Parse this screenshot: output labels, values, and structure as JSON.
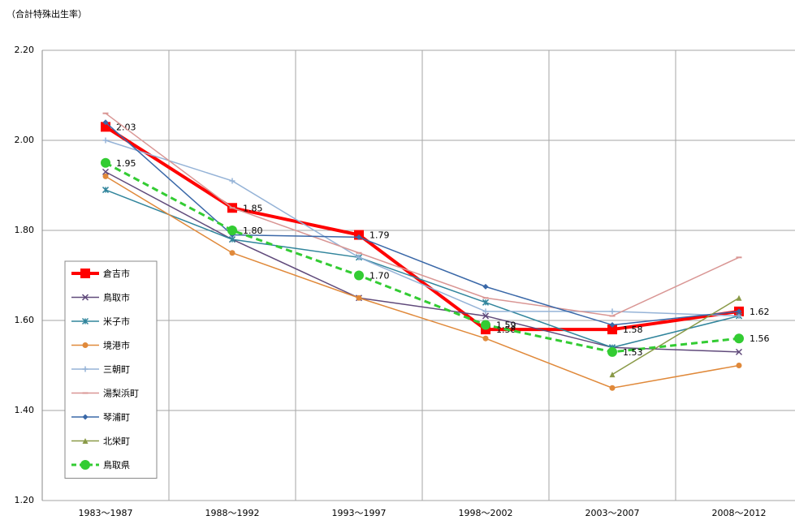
{
  "chart_data": {
    "type": "line",
    "y_axis_label": "（合計特殊出生率）",
    "categories": [
      "1983～1987",
      "1988～1992",
      "1993～1997",
      "1998～2002",
      "2003～2007",
      "2008～2012"
    ],
    "ylim": [
      1.2,
      2.2
    ],
    "yticks": [
      {
        "value": 1.2,
        "label": "1.20"
      },
      {
        "value": 1.4,
        "label": "1.40"
      },
      {
        "value": 1.6,
        "label": "1.60"
      },
      {
        "value": 1.8,
        "label": "1.80"
      },
      {
        "value": 2.0,
        "label": "2.00"
      },
      {
        "value": 2.2,
        "label": "2.20"
      }
    ],
    "grid": true,
    "legend": "left",
    "series": [
      {
        "name": "倉吉市",
        "color": "#ff0000",
        "marker": "square",
        "width": 4,
        "dashed": false,
        "values": [
          2.03,
          1.85,
          1.79,
          1.58,
          1.58,
          1.62
        ],
        "value_labels": [
          "2.03",
          "1.85",
          "1.79",
          "1.58",
          "1.58",
          "1.62"
        ]
      },
      {
        "name": "鳥取市",
        "color": "#604a7b",
        "marker": "x",
        "width": 1.5,
        "dashed": false,
        "values": [
          1.93,
          1.78,
          1.65,
          1.61,
          1.54,
          1.53
        ]
      },
      {
        "name": "米子市",
        "color": "#31859c",
        "marker": "asterisk",
        "width": 1.5,
        "dashed": false,
        "values": [
          1.89,
          1.78,
          1.74,
          1.64,
          1.54,
          1.61
        ]
      },
      {
        "name": "境港市",
        "color": "#e0893a",
        "marker": "circle",
        "width": 1.5,
        "dashed": false,
        "values": [
          1.92,
          1.75,
          1.65,
          1.56,
          1.45,
          1.5
        ]
      },
      {
        "name": "三朝町",
        "color": "#95b3d7",
        "marker": "plus",
        "width": 1.5,
        "dashed": false,
        "values": [
          2.0,
          1.91,
          1.74,
          1.62,
          1.62,
          1.61
        ]
      },
      {
        "name": "湯梨浜町",
        "color": "#d99694",
        "marker": "dash",
        "width": 1.5,
        "dashed": false,
        "values": [
          2.06,
          1.85,
          1.75,
          1.65,
          1.61,
          1.74
        ]
      },
      {
        "name": "琴浦町",
        "color": "#3a68a8",
        "marker": "diamond",
        "width": 1.5,
        "dashed": false,
        "values": [
          2.04,
          1.79,
          1.785,
          1.675,
          1.59,
          1.62
        ]
      },
      {
        "name": "北栄町",
        "color": "#8a9a48",
        "marker": "triangle",
        "width": 1.5,
        "dashed": false,
        "values": [
          null,
          null,
          null,
          null,
          1.48,
          1.65
        ]
      },
      {
        "name": "鳥取県",
        "color": "#33cc33",
        "marker": "circle",
        "width": 3,
        "dashed": true,
        "values": [
          1.95,
          1.8,
          1.7,
          1.59,
          1.53,
          1.56
        ],
        "value_labels": [
          "1.95",
          "1.80",
          "1.70",
          "1.59",
          "1.53",
          "1.56"
        ]
      }
    ]
  }
}
